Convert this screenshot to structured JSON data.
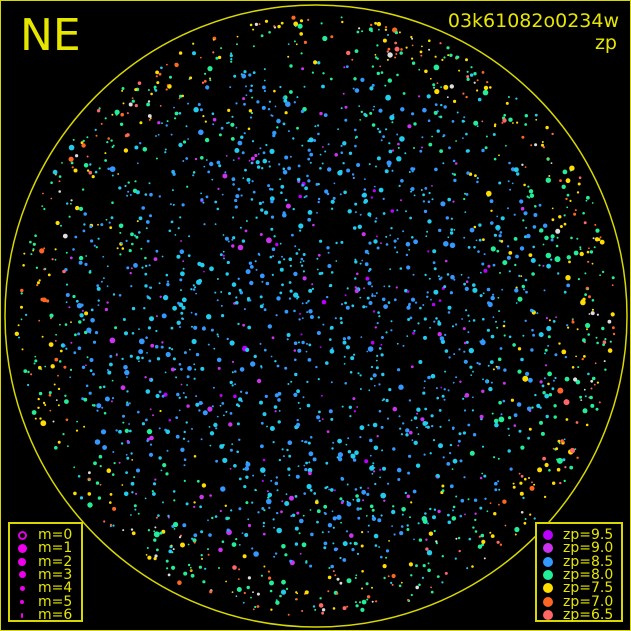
{
  "header": {
    "direction": "NE",
    "filename": "03k61082o0234w",
    "color_key": "zp"
  },
  "colors": {
    "frame": "#d8d800",
    "text": "#e6e600",
    "background": "#000000",
    "outside_range": "#dddddd"
  },
  "chart_data": {
    "type": "scatter",
    "title": "03k61082o0234w",
    "color_variable": "zp",
    "size_variable": "m",
    "region": "circular field of view",
    "grid": false,
    "size_legend": {
      "placement": "bottom-left",
      "entries": [
        {
          "label": "m=0",
          "m": 0,
          "open": true
        },
        {
          "label": "m=1",
          "m": 1
        },
        {
          "label": "m=2",
          "m": 2
        },
        {
          "label": "m=3",
          "m": 3
        },
        {
          "label": "m=4",
          "m": 4
        },
        {
          "label": "m=5",
          "m": 5
        },
        {
          "label": "m=6",
          "m": 6
        }
      ]
    },
    "color_legend": {
      "placement": "bottom-right",
      "entries": [
        {
          "label": "zp=9.5",
          "zp": 9.5,
          "color": "#bb00ff"
        },
        {
          "label": "zp=9.0",
          "zp": 9.0,
          "color": "#cc33ee"
        },
        {
          "label": "zp=8.5",
          "zp": 8.5,
          "color": "#3399ff"
        },
        {
          "label": "zp=8.0",
          "zp": 8.0,
          "color": "#22ee99"
        },
        {
          "label": "zp=7.5",
          "zp": 7.5,
          "color": "#ffdd00"
        },
        {
          "label": "zp=7.0",
          "zp": 7.0,
          "color": "#ff6622"
        },
        {
          "label": "zp=6.5",
          "zp": 6.5,
          "color": "#ff6666"
        }
      ]
    }
  }
}
